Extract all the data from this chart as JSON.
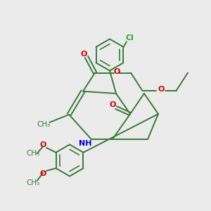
{
  "bg_color": "#ebebeb",
  "bond_color": "#3a7a3a",
  "bond_width": 1.4,
  "o_color": "#cc0000",
  "n_color": "#0000cc",
  "cl_color": "#22aa22",
  "xlim": [
    0,
    10
  ],
  "ylim": [
    0,
    10
  ]
}
